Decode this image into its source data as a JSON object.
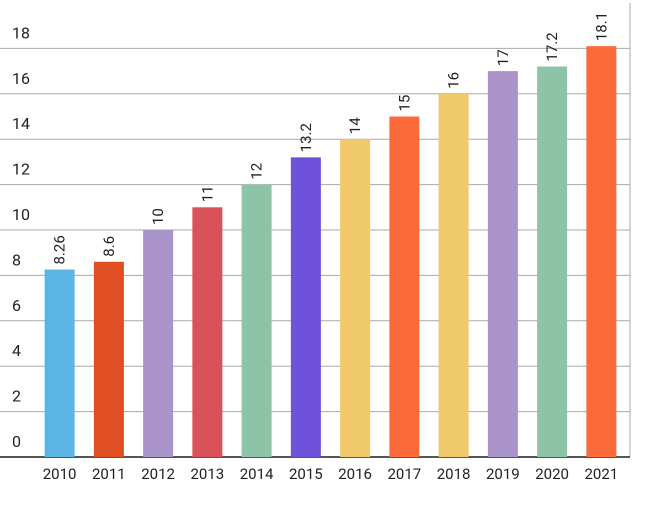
{
  "chart_data": {
    "type": "bar",
    "categories": [
      "2010",
      "2011",
      "2012",
      "2013",
      "2014",
      "2015",
      "2016",
      "2017",
      "2018",
      "2019",
      "2020",
      "2021"
    ],
    "values": [
      8.26,
      8.6,
      10,
      11,
      12,
      13.2,
      14,
      15,
      16,
      17,
      17.2,
      18.1
    ],
    "colors": [
      "#5ab4e5",
      "#e04e24",
      "#a993c9",
      "#d9525a",
      "#8dc3a7",
      "#6e52d9",
      "#efc96a",
      "#fd6a3a",
      "#efc96a",
      "#a993c9",
      "#8dc3a7",
      "#fd6a3a"
    ],
    "ylim": [
      0,
      20
    ],
    "yticks": [
      0,
      2,
      4,
      6,
      8,
      10,
      12,
      14,
      16,
      18
    ],
    "grid": true
  }
}
